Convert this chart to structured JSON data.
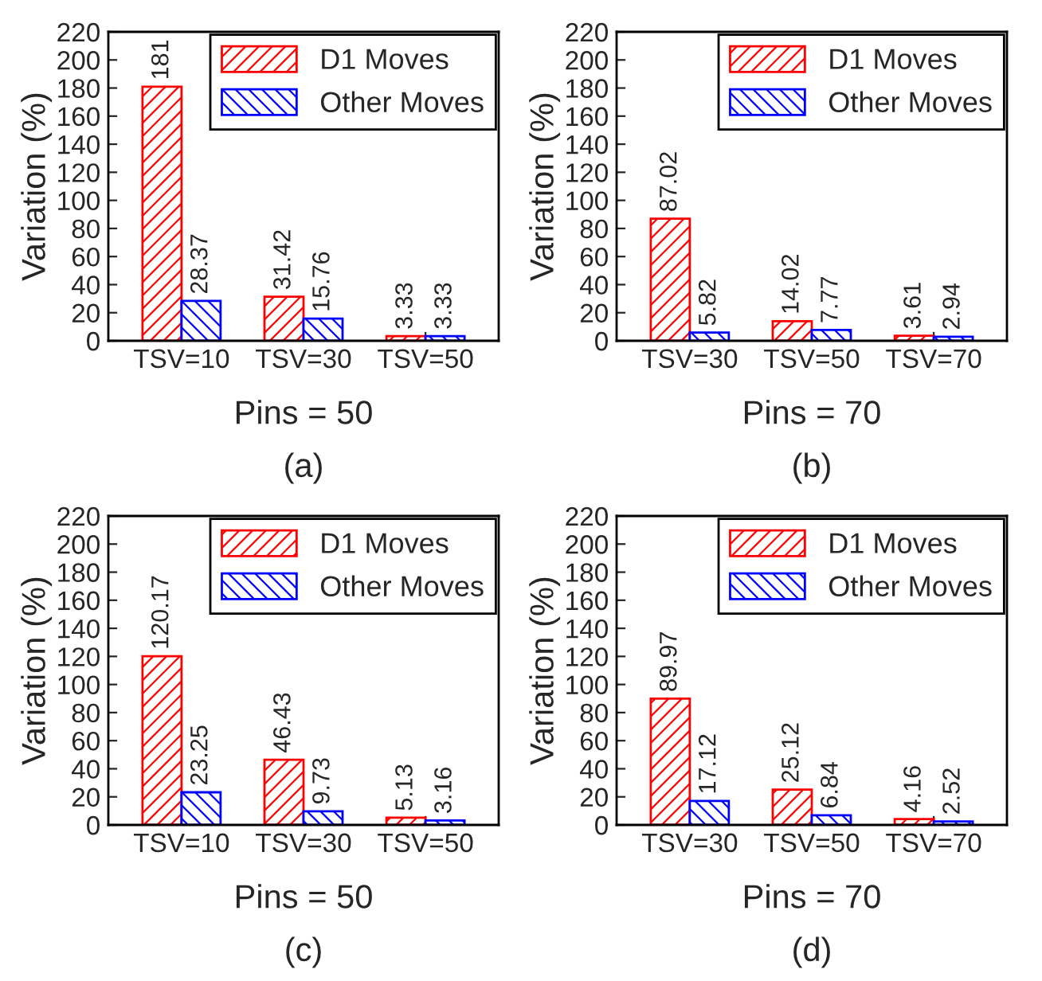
{
  "chart_data": [
    {
      "type": "bar",
      "categories": [
        "TSV=10",
        "TSV=30",
        "TSV=50"
      ],
      "ylabel": "Variation (%)",
      "xlabel": "Pins = 50",
      "annotations": [
        "(a)"
      ],
      "ylim": [
        0,
        220
      ],
      "yticks": [
        0,
        20,
        40,
        60,
        80,
        100,
        120,
        140,
        160,
        180,
        200,
        220
      ],
      "legend": "top right",
      "data_labels": true,
      "grid": false,
      "series": [
        {
          "name": "D1 Moves",
          "color": "#ff0000",
          "values": [
            181,
            31.42,
            3.33
          ]
        },
        {
          "name": "Other Moves",
          "color": "#0000ff",
          "values": [
            28.37,
            15.76,
            3.33
          ]
        }
      ]
    },
    {
      "type": "bar",
      "categories": [
        "TSV=30",
        "TSV=50",
        "TSV=70"
      ],
      "ylabel": "Variation (%)",
      "xlabel": "Pins = 70",
      "annotations": [
        "(b)"
      ],
      "ylim": [
        0,
        220
      ],
      "yticks": [
        0,
        20,
        40,
        60,
        80,
        100,
        120,
        140,
        160,
        180,
        200,
        220
      ],
      "legend": "top right",
      "data_labels": true,
      "grid": false,
      "series": [
        {
          "name": "D1 Moves",
          "color": "#ff0000",
          "values": [
            87.02,
            14.02,
            3.61
          ]
        },
        {
          "name": "Other Moves",
          "color": "#0000ff",
          "values": [
            5.82,
            7.77,
            2.94
          ]
        }
      ]
    },
    {
      "type": "bar",
      "categories": [
        "TSV=10",
        "TSV=30",
        "TSV=50"
      ],
      "ylabel": "Variation (%)",
      "xlabel": "Pins = 50",
      "annotations": [
        "(c)"
      ],
      "ylim": [
        0,
        220
      ],
      "yticks": [
        0,
        20,
        40,
        60,
        80,
        100,
        120,
        140,
        160,
        180,
        200,
        220
      ],
      "legend": "top right",
      "data_labels": true,
      "grid": false,
      "series": [
        {
          "name": "D1 Moves",
          "color": "#ff0000",
          "values": [
            120.17,
            46.43,
            5.13
          ]
        },
        {
          "name": "Other Moves",
          "color": "#0000ff",
          "values": [
            23.25,
            9.73,
            3.16
          ]
        }
      ]
    },
    {
      "type": "bar",
      "categories": [
        "TSV=30",
        "TSV=50",
        "TSV=70"
      ],
      "ylabel": "Variation (%)",
      "xlabel": "Pins = 70",
      "annotations": [
        "(d)"
      ],
      "ylim": [
        0,
        220
      ],
      "yticks": [
        0,
        20,
        40,
        60,
        80,
        100,
        120,
        140,
        160,
        180,
        200,
        220
      ],
      "legend": "top right",
      "data_labels": true,
      "grid": false,
      "series": [
        {
          "name": "D1 Moves",
          "color": "#ff0000",
          "values": [
            89.97,
            25.12,
            4.16
          ]
        },
        {
          "name": "Other Moves",
          "color": "#0000ff",
          "values": [
            17.12,
            6.84,
            2.52
          ]
        }
      ]
    }
  ]
}
